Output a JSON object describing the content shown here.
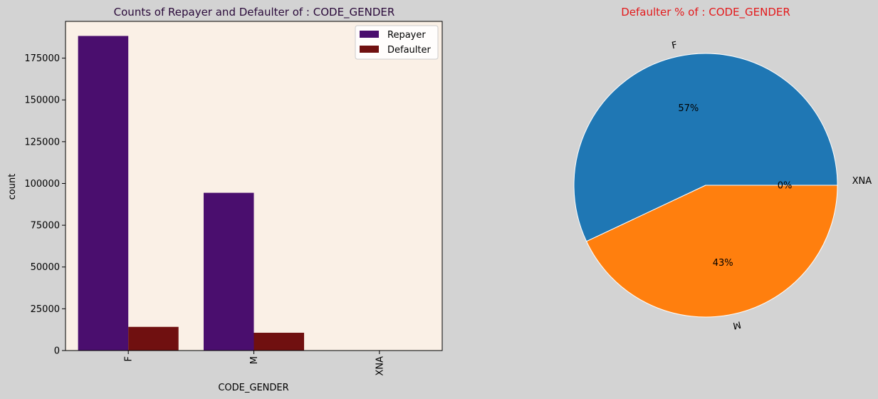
{
  "chart_data": [
    {
      "type": "bar",
      "title": "Counts of Repayer and Defaulter of : CODE_GENDER",
      "xlabel": "CODE_GENDER",
      "ylabel": "count",
      "categories": [
        "F",
        "M",
        "XNA"
      ],
      "series": [
        {
          "name": "Repayer",
          "values": [
            188278,
            94404,
            4
          ]
        },
        {
          "name": "Defaulter",
          "values": [
            14170,
            10655,
            0
          ]
        }
      ],
      "ylim": [
        0,
        197000
      ],
      "yticks": [
        0,
        25000,
        50000,
        75000,
        100000,
        125000,
        150000,
        175000
      ],
      "colors": {
        "Repayer": "#4a0e6e",
        "Defaulter": "#701010",
        "plot_bg": "#faf0e6",
        "figure_bg": "#d3d3d3",
        "title": "#2a0a3a"
      },
      "legend_position": "top-right",
      "grid": false
    },
    {
      "type": "pie",
      "title": "Defaulter % of : CODE_GENDER",
      "labels": [
        "F",
        "M",
        "XNA"
      ],
      "values": [
        57,
        43,
        0
      ],
      "pct_labels": [
        "57%",
        "43%",
        "0%"
      ],
      "colors": {
        "slices": [
          "#1f77b4",
          "#ff7f0e",
          "#2ca02c"
        ],
        "title": "#e31a1c"
      }
    }
  ]
}
